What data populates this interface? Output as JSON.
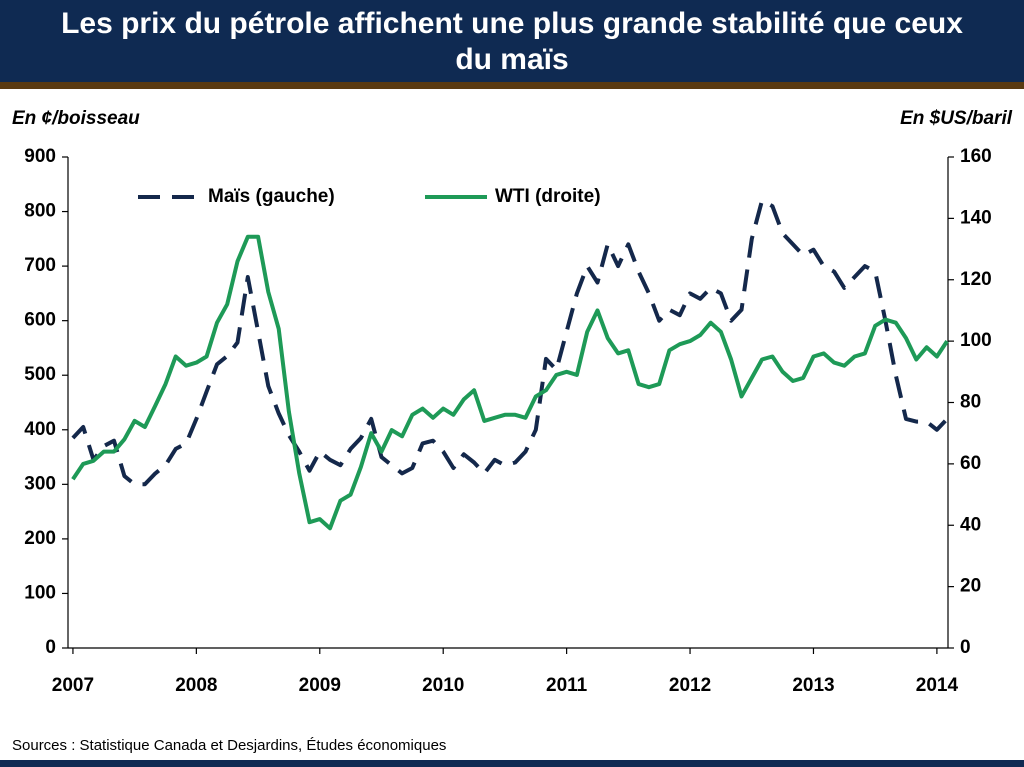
{
  "chart_data": {
    "type": "line",
    "title": "Les prix du pétrole affichent une plus grande stabilité que ceux du maïs",
    "ylabel": "En ¢/boisseau",
    "y2label": "En $US/baril",
    "source": "Sources : Statistique Canada et Desjardins, Études économiques",
    "legend": "upper left",
    "x": [
      2007,
      2007.083,
      2007.167,
      2007.25,
      2007.333,
      2007.417,
      2007.5,
      2007.583,
      2007.667,
      2007.75,
      2007.833,
      2007.917,
      2008,
      2008.083,
      2008.167,
      2008.25,
      2008.333,
      2008.417,
      2008.5,
      2008.583,
      2008.667,
      2008.75,
      2008.833,
      2008.917,
      2009,
      2009.083,
      2009.167,
      2009.25,
      2009.333,
      2009.417,
      2009.5,
      2009.583,
      2009.667,
      2009.75,
      2009.833,
      2009.917,
      2010,
      2010.083,
      2010.167,
      2010.25,
      2010.333,
      2010.417,
      2010.5,
      2010.583,
      2010.667,
      2010.75,
      2010.833,
      2010.917,
      2011,
      2011.083,
      2011.167,
      2011.25,
      2011.333,
      2011.417,
      2011.5,
      2011.583,
      2011.667,
      2011.75,
      2011.833,
      2011.917,
      2012,
      2012.083,
      2012.167,
      2012.25,
      2012.333,
      2012.417,
      2012.5,
      2012.583,
      2012.667,
      2012.75,
      2012.833,
      2012.917,
      2013,
      2013.083,
      2013.167,
      2013.25,
      2013.333,
      2013.417,
      2013.5,
      2013.583,
      2013.667,
      2013.75,
      2013.833,
      2013.917,
      2014,
      2014.083
    ],
    "series": [
      {
        "name": "Maïs (gauche)",
        "color": "#14284b",
        "dashed": true,
        "values": [
          385,
          405,
          345,
          370,
          380,
          315,
          300,
          300,
          320,
          335,
          365,
          375,
          420,
          470,
          520,
          535,
          560,
          680,
          580,
          480,
          430,
          390,
          360,
          325,
          360,
          345,
          335,
          365,
          385,
          420,
          350,
          335,
          320,
          330,
          375,
          380,
          360,
          330,
          355,
          340,
          320,
          345,
          335,
          340,
          360,
          400,
          530,
          510,
          580,
          650,
          700,
          670,
          740,
          700,
          740,
          690,
          650,
          600,
          620,
          610,
          650,
          640,
          660,
          650,
          600,
          620,
          750,
          820,
          810,
          760,
          740,
          720,
          730,
          700,
          690,
          660,
          680,
          700,
          690,
          600,
          500,
          420,
          415,
          415,
          400,
          420
        ]
      },
      {
        "name": "WTI (droite)",
        "color": "#1e9a57",
        "axis": "y2",
        "values": [
          55,
          60,
          61,
          64,
          64,
          68,
          74,
          72,
          79,
          86,
          95,
          92,
          93,
          95,
          106,
          112,
          126,
          134,
          134,
          116,
          104,
          77,
          57,
          41,
          42,
          39,
          48,
          50,
          59,
          70,
          64,
          71,
          69,
          76,
          78,
          75,
          78,
          76,
          81,
          84,
          74,
          75,
          76,
          76,
          75,
          82,
          84,
          89,
          90,
          89,
          103,
          110,
          101,
          96,
          97,
          86,
          85,
          86,
          97,
          99,
          100,
          102,
          106,
          103,
          94,
          82,
          88,
          94,
          95,
          90,
          87,
          88,
          95,
          96,
          93,
          92,
          95,
          96,
          105,
          107,
          106,
          101,
          94,
          98,
          95,
          100
        ]
      }
    ],
    "xlim": [
      2006.96,
      2014.09
    ],
    "xticks": [
      2007,
      2008,
      2009,
      2010,
      2011,
      2012,
      2013,
      2014
    ],
    "ylim": [
      0,
      900
    ],
    "yticks": [
      0,
      100,
      200,
      300,
      400,
      500,
      600,
      700,
      800,
      900
    ],
    "y2lim": [
      0,
      160
    ],
    "y2ticks": [
      0,
      20,
      40,
      60,
      80,
      100,
      120,
      140,
      160
    ]
  }
}
